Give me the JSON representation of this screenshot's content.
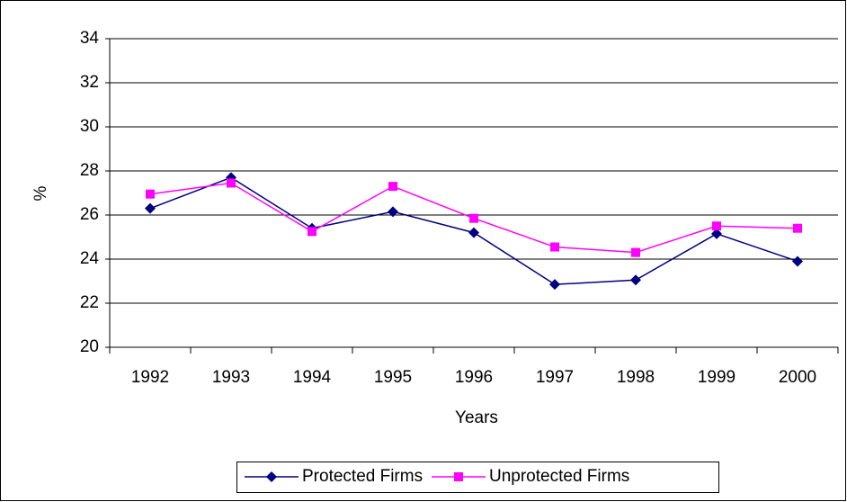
{
  "chart_data": {
    "type": "line",
    "x_label": "Years",
    "y_label": "%",
    "categories": [
      "1992",
      "1993",
      "1994",
      "1995",
      "1996",
      "1997",
      "1998",
      "1999",
      "2000"
    ],
    "series": [
      {
        "name": "Protected Firms",
        "color": "#000080",
        "marker": "diamond",
        "values": [
          26.3,
          27.7,
          25.4,
          26.15,
          25.2,
          22.85,
          23.05,
          25.15,
          23.9
        ]
      },
      {
        "name": "Unprotected Firms",
        "color": "#ff00ff",
        "marker": "square",
        "values": [
          26.95,
          27.45,
          25.25,
          27.3,
          25.85,
          24.55,
          24.3,
          25.5,
          25.4
        ]
      }
    ],
    "ylim": [
      20,
      34
    ],
    "yticks": [
      20,
      22,
      24,
      26,
      28,
      30,
      32,
      34
    ],
    "grid": true,
    "legend": "bottom"
  }
}
